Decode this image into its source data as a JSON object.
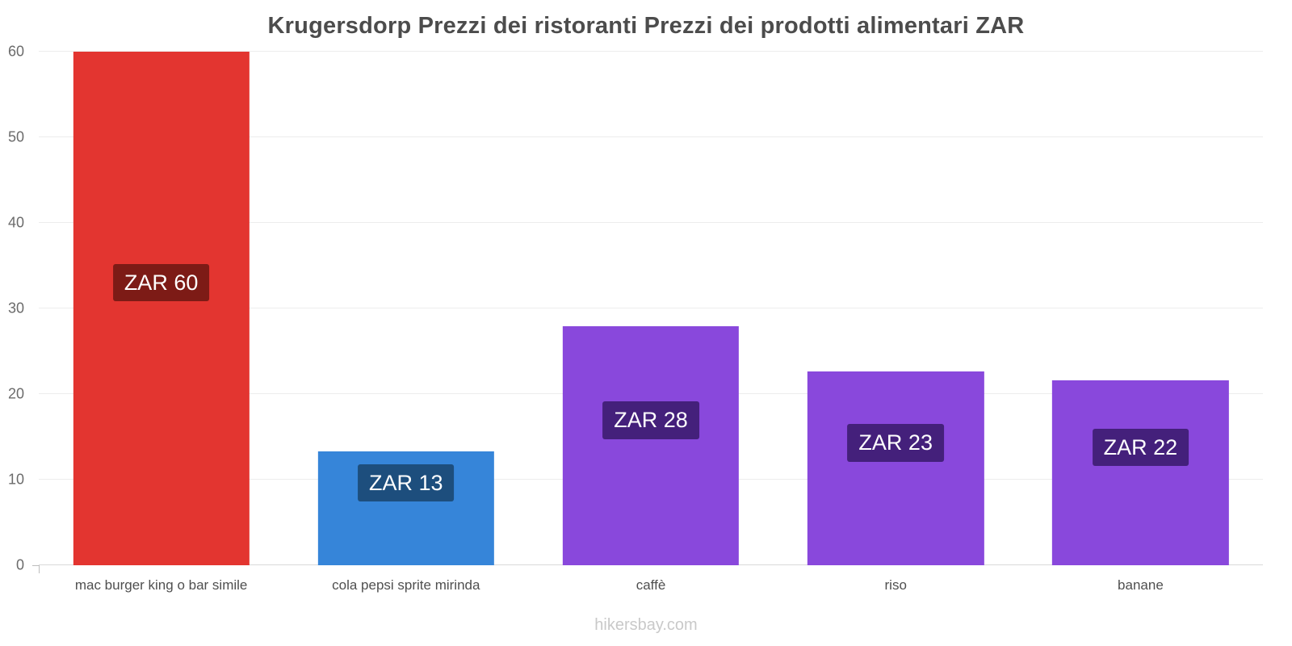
{
  "title": "Krugersdorp Prezzi dei ristoranti Prezzi dei prodotti alimentari ZAR",
  "footer": "hikersbay.com",
  "chart_data": {
    "type": "bar",
    "title": "Krugersdorp Prezzi dei ristoranti Prezzi dei prodotti alimentari ZAR",
    "categories": [
      "mac burger king o bar simile",
      "cola pepsi sprite mirinda",
      "caffè",
      "riso",
      "banane"
    ],
    "values": [
      60,
      13.3,
      27.9,
      22.6,
      21.6
    ],
    "value_labels": [
      "ZAR 60",
      "ZAR 13",
      "ZAR 28",
      "ZAR 23",
      "ZAR 22"
    ],
    "bar_colors": [
      "#e33530",
      "#3685d9",
      "#8948dc",
      "#8948dc",
      "#8948dc"
    ],
    "label_bg_colors": [
      "#7d1b16",
      "#1d4e7d",
      "#44207b",
      "#44207b",
      "#44207b"
    ],
    "xlabel": "",
    "ylabel": "",
    "ylim": [
      0,
      60
    ],
    "yticks": [
      0,
      10,
      20,
      30,
      40,
      50,
      60
    ],
    "grid": true,
    "legend": false,
    "currency": "ZAR"
  }
}
